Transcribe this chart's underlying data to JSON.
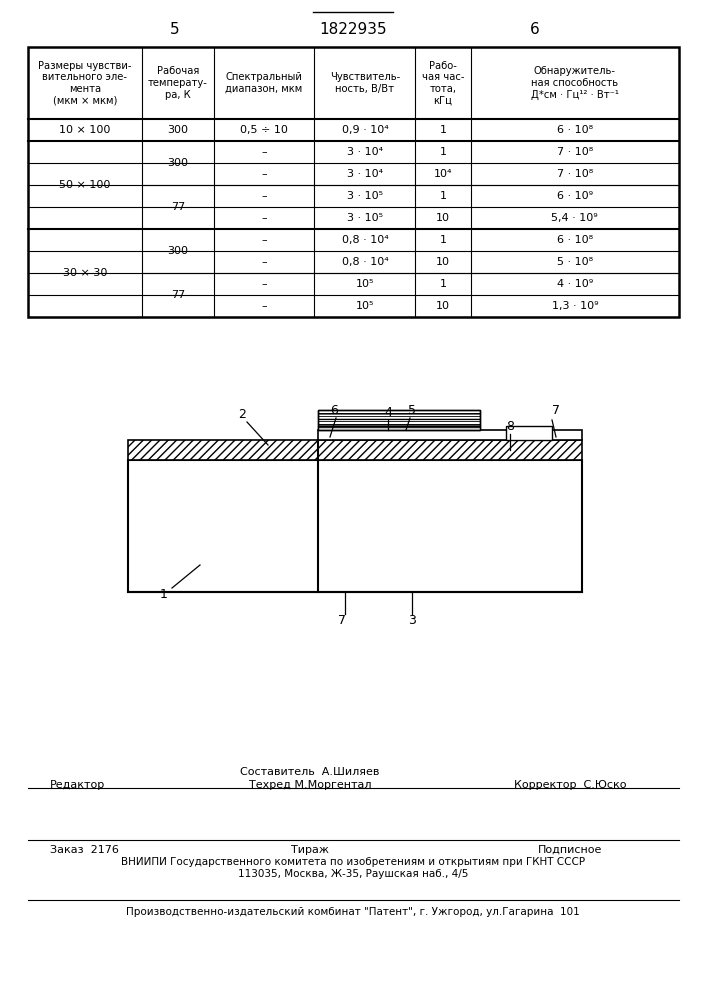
{
  "page_number_left": "5",
  "page_number_center": "1822935",
  "page_number_right": "6",
  "footer_line1_left": "Редактор",
  "footer_line1_center_top": "Составитель  А.Шиляев",
  "footer_line1_center_bot": "Техред М.Моргентал",
  "footer_line1_right": "Корректор  С.Юско",
  "footer_line2_left": "Заказ  2176",
  "footer_line2_center": "Тираж",
  "footer_line2_right": "Подписное",
  "footer_line3": "ВНИИПИ Государственного комитета по изобретениям и открытиям при ГКНТ СССР",
  "footer_line4": "113035, Москва, Ж-35, Раушская наб., 4/5",
  "footer_line5": "Производственно-издательский комбинат \"Патент\", г. Ужгород, ул.Гагарина  101"
}
